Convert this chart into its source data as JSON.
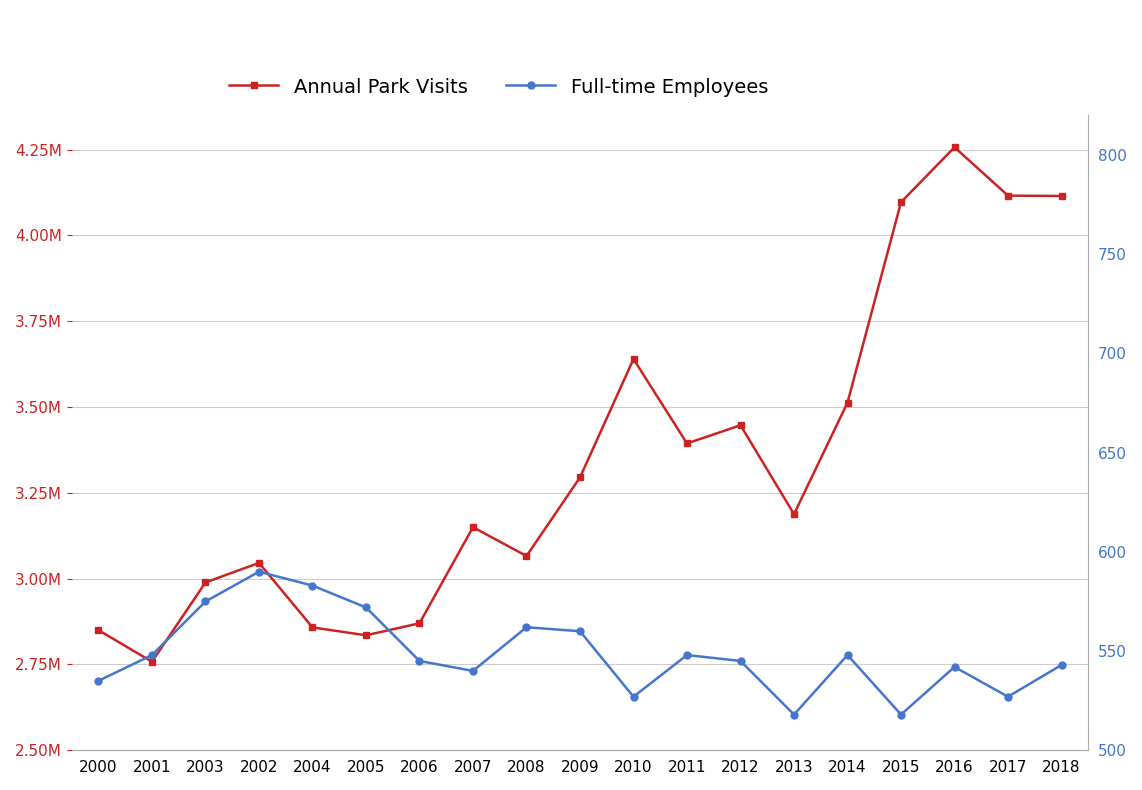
{
  "x_labels": [
    "2000",
    "2001",
    "2003",
    "2002",
    "2004",
    "2005",
    "2006",
    "2007",
    "2008",
    "2009",
    "2010",
    "2011",
    "2012",
    "2013",
    "2014",
    "2015",
    "2016",
    "2017",
    "2018"
  ],
  "park_visits": [
    2850000,
    2758000,
    2989000,
    3046000,
    2858000,
    2835000,
    2870000,
    3150000,
    3066000,
    3295000,
    3640000,
    3394000,
    3447000,
    3188000,
    3513000,
    4097000,
    4257000,
    4116000,
    4115000
  ],
  "employees": [
    535,
    548,
    575,
    590,
    583,
    572,
    545,
    540,
    562,
    560,
    527,
    548,
    545,
    518,
    548,
    518,
    542,
    527,
    543
  ],
  "visits_color": "#cc2222",
  "employees_color": "#4477cc",
  "legend_text_color": "#000000",
  "visits_label": "Annual Park Visits",
  "employees_label": "Full-time Employees",
  "left_ylim": [
    2500000,
    4350000
  ],
  "right_ylim": [
    500,
    820
  ],
  "left_yticks": [
    2500000,
    2750000,
    3000000,
    3250000,
    3500000,
    3750000,
    4000000,
    4250000
  ],
  "right_yticks": [
    500,
    550,
    600,
    650,
    700,
    750,
    800
  ],
  "background_color": "#ffffff",
  "grid_color": "#cccccc",
  "legend_fontsize": 14,
  "tick_fontsize": 11
}
